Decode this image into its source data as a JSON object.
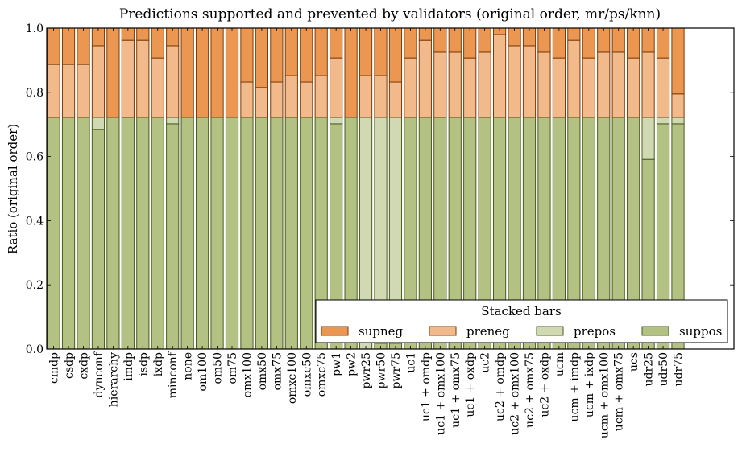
{
  "chart_data": {
    "type": "bar",
    "stacked": true,
    "title": "Predictions supported and prevented by validators (original order, mr/ps/knn)",
    "xlabel": "",
    "ylabel": "Ratio (original order)",
    "ylim": [
      0.0,
      1.0
    ],
    "yticks": [
      "0.0",
      "0.2",
      "0.4",
      "0.6",
      "0.8",
      "1.0"
    ],
    "ytick_values": [
      0.0,
      0.2,
      0.4,
      0.6,
      0.8,
      1.0
    ],
    "grid": false,
    "legend": {
      "title": "Stacked bars",
      "placement": "lower-right",
      "entries": [
        "supneg",
        "preneg",
        "prepos",
        "suppos"
      ]
    },
    "categories": [
      "cmdp",
      "csdp",
      "cxdp",
      "dynconf",
      "hierarchy",
      "imdp",
      "isdp",
      "ixdp",
      "minconf",
      "none",
      "om100",
      "om50",
      "om75",
      "omx100",
      "omx50",
      "omx75",
      "omxc100",
      "omxc50",
      "omxc75",
      "pw1",
      "pw2",
      "pwr25",
      "pwr50",
      "pwr75",
      "uc1",
      "uc1 + omdp",
      "uc1 + omx100",
      "uc1 + omx75",
      "uc1 + oxdp",
      "uc2",
      "uc2 + omdp",
      "uc2 + omx100",
      "uc2 + omx75",
      "uc2 + oxdp",
      "ucm",
      "ucm + imdp",
      "ucm + ixdp",
      "ucm + omx100",
      "ucm + omx75",
      "ucs",
      "udr25",
      "udr50",
      "udr75"
    ],
    "series": [
      {
        "name": "suppos",
        "color": "#b3c283",
        "edge": "#4a5a20",
        "values": [
          0.722,
          0.722,
          0.722,
          0.684,
          0.722,
          0.722,
          0.722,
          0.722,
          0.702,
          0.722,
          0.722,
          0.722,
          0.722,
          0.722,
          0.722,
          0.722,
          0.722,
          0.722,
          0.722,
          0.702,
          0.722,
          0.0,
          0.018,
          0.018,
          0.722,
          0.722,
          0.722,
          0.722,
          0.722,
          0.722,
          0.722,
          0.722,
          0.722,
          0.722,
          0.722,
          0.722,
          0.722,
          0.722,
          0.722,
          0.722,
          0.591,
          0.702,
          0.702
        ]
      },
      {
        "name": "prepos",
        "color": "#d0d9b2",
        "edge": "#4a5a20",
        "values": [
          0.0,
          0.0,
          0.0,
          0.038,
          0.0,
          0.0,
          0.0,
          0.0,
          0.02,
          0.0,
          0.0,
          0.0,
          0.0,
          0.0,
          0.0,
          0.0,
          0.0,
          0.0,
          0.0,
          0.02,
          0.0,
          0.722,
          0.704,
          0.704,
          0.0,
          0.0,
          0.0,
          0.0,
          0.0,
          0.0,
          0.0,
          0.0,
          0.0,
          0.0,
          0.0,
          0.0,
          0.0,
          0.0,
          0.0,
          0.0,
          0.131,
          0.02,
          0.02
        ]
      },
      {
        "name": "preneg",
        "color": "#f2b98a",
        "edge": "#7a3a08",
        "values": [
          0.165,
          0.165,
          0.165,
          0.223,
          0.0,
          0.24,
          0.24,
          0.185,
          0.223,
          0.0,
          0.0,
          0.0,
          0.0,
          0.11,
          0.093,
          0.11,
          0.13,
          0.11,
          0.13,
          0.185,
          0.0,
          0.13,
          0.13,
          0.11,
          0.185,
          0.24,
          0.203,
          0.203,
          0.185,
          0.203,
          0.258,
          0.223,
          0.223,
          0.203,
          0.185,
          0.24,
          0.185,
          0.203,
          0.203,
          0.185,
          0.203,
          0.185,
          0.073
        ]
      },
      {
        "name": "supneg",
        "color": "#eb9752",
        "edge": "#7a3a08",
        "values": [
          0.113,
          0.113,
          0.113,
          0.055,
          0.278,
          0.038,
          0.038,
          0.093,
          0.055,
          0.278,
          0.278,
          0.278,
          0.278,
          0.168,
          0.185,
          0.168,
          0.148,
          0.168,
          0.148,
          0.093,
          0.278,
          0.148,
          0.148,
          0.168,
          0.093,
          0.038,
          0.075,
          0.075,
          0.093,
          0.075,
          0.02,
          0.055,
          0.055,
          0.075,
          0.093,
          0.038,
          0.093,
          0.075,
          0.075,
          0.093,
          0.075,
          0.093,
          0.205
        ]
      }
    ]
  }
}
